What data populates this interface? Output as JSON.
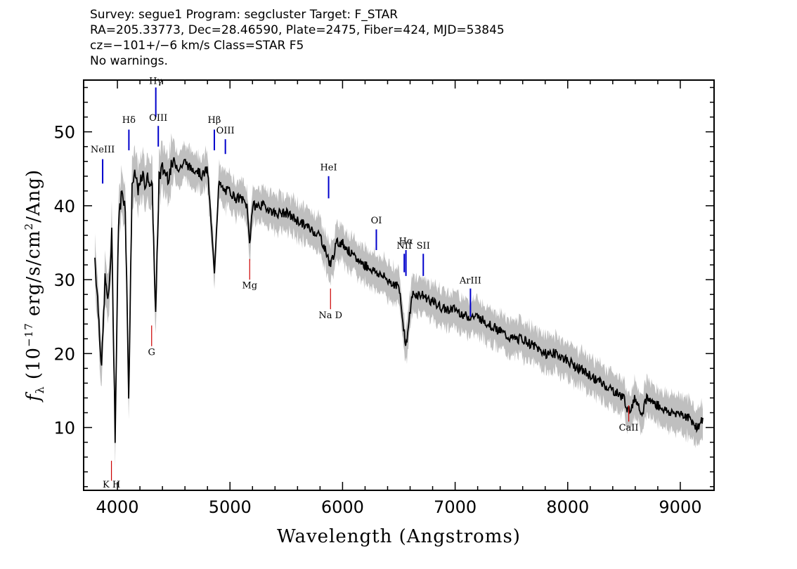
{
  "header": {
    "line1": "Survey: segue1 Program: segcluster Target: F_STAR",
    "line2": "RA=205.33773, Dec=28.46590, Plate=2475, Fiber=424, MJD=53845",
    "line3": "cz=−101+/−6 km/s Class=STAR F5",
    "line4": "No warnings."
  },
  "chart_data": {
    "type": "line",
    "xlabel": "Wavelength (Angstroms)",
    "ylabel": "f_λ (10^-17 erg/s/cm²/Ang)",
    "xlim": [
      3700,
      9300
    ],
    "ylim": [
      1.5,
      57
    ],
    "x_ticks": [
      4000,
      5000,
      6000,
      7000,
      8000,
      9000
    ],
    "y_ticks": [
      10,
      20,
      30,
      40,
      50
    ],
    "colors": {
      "flux": "#000000",
      "error_band": "#bfbfbf",
      "emission": "#0000cc",
      "absorption": "#cc0000"
    },
    "series": [
      {
        "x": [
          3800,
          3830,
          3860,
          3890,
          3920,
          3950,
          3980,
          4010,
          4040,
          4070,
          4101,
          4130,
          4160,
          4190,
          4220,
          4250,
          4280,
          4310,
          4340,
          4370,
          4400,
          4450,
          4500,
          4550,
          4600,
          4650,
          4700,
          4750,
          4800,
          4861,
          4900,
          4950,
          5000,
          5050,
          5100,
          5150,
          5175,
          5200,
          5300,
          5400,
          5500,
          5600,
          5700,
          5800,
          5893,
          5950,
          6000,
          6100,
          6200,
          6300,
          6400,
          6500,
          6563,
          6620,
          6700,
          6800,
          6900,
          7000,
          7100,
          7200,
          7300,
          7400,
          7500,
          7600,
          7700,
          7800,
          7900,
          8000,
          8100,
          8200,
          8300,
          8400,
          8500,
          8542,
          8600,
          8662,
          8700,
          8800,
          8900,
          9000,
          9100,
          9150,
          9200
        ],
        "values": [
          33,
          26,
          18,
          30,
          27,
          36,
          9,
          38,
          42,
          40,
          14,
          43,
          44,
          42,
          44,
          43,
          44,
          42,
          25,
          44,
          45,
          44,
          46,
          45,
          46,
          45,
          45,
          44,
          45,
          31,
          43,
          42,
          42,
          41,
          41,
          40,
          35,
          40,
          40,
          39,
          39,
          38,
          37,
          36,
          32,
          35,
          35,
          33,
          32,
          31,
          30,
          29,
          21,
          28,
          28,
          27,
          26,
          26,
          25,
          25,
          24,
          23,
          22,
          22,
          21,
          20,
          20,
          19,
          18,
          17,
          16,
          15,
          14,
          12,
          14,
          12,
          14,
          13,
          12,
          12,
          11,
          10,
          11
        ]
      }
    ],
    "lines": [
      {
        "label": "NeIII",
        "wave": 3869,
        "kind": "emission",
        "y1": 43.0,
        "y2": 46.3,
        "ly": 47.2
      },
      {
        "label": "Hδ",
        "wave": 4102,
        "kind": "emission",
        "y1": 47.5,
        "y2": 50.3,
        "ly": 51.2
      },
      {
        "label": "Hγ",
        "wave": 4341,
        "kind": "emission",
        "y1": 52.0,
        "y2": 56.0,
        "ly": 56.5
      },
      {
        "label": "OIII",
        "wave": 4363,
        "kind": "emission",
        "y1": 48.0,
        "y2": 50.8,
        "ly": 51.5
      },
      {
        "label": "Hβ",
        "wave": 4861,
        "kind": "emission",
        "y1": 47.5,
        "y2": 50.3,
        "ly": 51.2
      },
      {
        "label": "OIII",
        "wave": 4959,
        "kind": "emission",
        "y1": 47.0,
        "y2": 49.0,
        "ly": 49.8
      },
      {
        "label": "HeI",
        "wave": 5876,
        "kind": "emission",
        "y1": 41.0,
        "y2": 44.0,
        "ly": 44.8
      },
      {
        "label": "OI",
        "wave": 6300,
        "kind": "emission",
        "y1": 34.0,
        "y2": 36.8,
        "ly": 37.6
      },
      {
        "label": "NII",
        "wave": 6548,
        "kind": "emission",
        "y1": 31.0,
        "y2": 33.5,
        "ly": 34.2
      },
      {
        "label": "Hα",
        "wave": 6563,
        "kind": "emission",
        "y1": 30.5,
        "y2": 34.0,
        "ly": 34.8
      },
      {
        "label": "SII",
        "wave": 6717,
        "kind": "emission",
        "y1": 30.5,
        "y2": 33.5,
        "ly": 34.2
      },
      {
        "label": "ArIII",
        "wave": 7136,
        "kind": "emission",
        "y1": 25.0,
        "y2": 28.8,
        "ly": 29.5
      },
      {
        "label": "K H",
        "wave": 3947,
        "kind": "absorption",
        "y1": 2.8,
        "y2": 5.5,
        "ly": 1.9
      },
      {
        "label": "G",
        "wave": 4304,
        "kind": "absorption",
        "y1": 21.0,
        "y2": 23.8,
        "ly": 19.8
      },
      {
        "label": "Mg",
        "wave": 5175,
        "kind": "absorption",
        "y1": 30.0,
        "y2": 32.8,
        "ly": 28.8
      },
      {
        "label": "Na D",
        "wave": 5893,
        "kind": "absorption",
        "y1": 26.0,
        "y2": 28.8,
        "ly": 24.8
      },
      {
        "label": "CaII",
        "wave": 8542,
        "kind": "absorption",
        "y1": 10.8,
        "y2": 13.0,
        "ly": 9.6
      }
    ]
  }
}
